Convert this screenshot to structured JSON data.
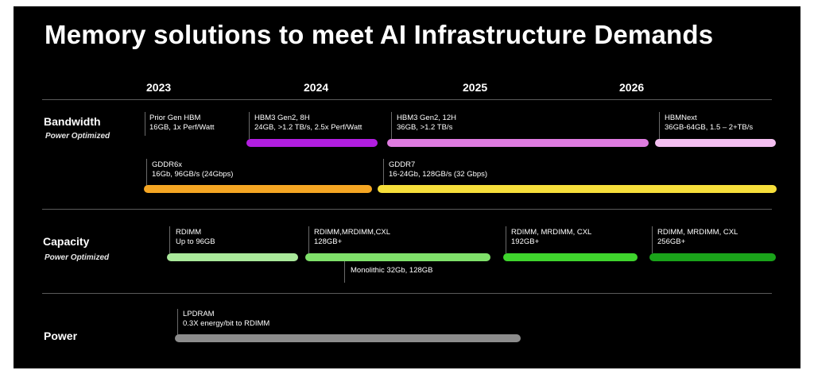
{
  "title": "Memory solutions to meet AI Infrastructure Demands",
  "years": [
    "2023",
    "2024",
    "2025",
    "2026"
  ],
  "rows": {
    "bandwidth": {
      "name": "Bandwidth",
      "sub": "Power Optimized"
    },
    "capacity": {
      "name": "Capacity",
      "sub": "Power Optimized"
    },
    "power": {
      "name": "Power"
    }
  },
  "items": {
    "prior_hbm": {
      "l1": "Prior Gen HBM",
      "l2": "16GB, 1x Perf/Watt"
    },
    "hbm3_8h": {
      "l1": "HBM3 Gen2, 8H",
      "l2": "24GB, >1.2 TB/s, 2.5x Perf/Watt",
      "color": "#b21ee0"
    },
    "hbm3_12h": {
      "l1": "HBM3 Gen2, 12H",
      "l2": "36GB, >1.2 TB/s",
      "color": "#df7ce0"
    },
    "hbmnext": {
      "l1": "HBMNext",
      "l2": "36GB-64GB, 1.5 – 2+TB/s",
      "color": "#f4bff0"
    },
    "gddr6x": {
      "l1": "GDDR6x",
      "l2": "16Gb, 96GB/s (24Gbps)",
      "color": "#f5a623"
    },
    "gddr7": {
      "l1": "GDDR7",
      "l2": "16-24Gb, 128GB/s (32 Gbps)",
      "color": "#f6de3a"
    },
    "rdimm_96": {
      "l1": "RDIMM",
      "l2": "Up to 96GB",
      "color": "#a9e89a"
    },
    "rdimm_128": {
      "l1": "RDIMM,MRDIMM,CXL",
      "l2": "128GB+",
      "color": "#7fe06a"
    },
    "monolithic": {
      "l1": "Monolithic 32Gb, 128GB"
    },
    "rdimm_192": {
      "l1": "RDIMM, MRDIMM, CXL",
      "l2": "192GB+",
      "color": "#3fd42d"
    },
    "rdimm_256": {
      "l1": "RDIMM, MRDIMM, CXL",
      "l2": "256GB+",
      "color": "#1aa31a"
    },
    "lpdram": {
      "l1": "LPDRAM",
      "l2": "0.3X energy/bit to RDIMM",
      "color": "#8c8c8c"
    }
  }
}
